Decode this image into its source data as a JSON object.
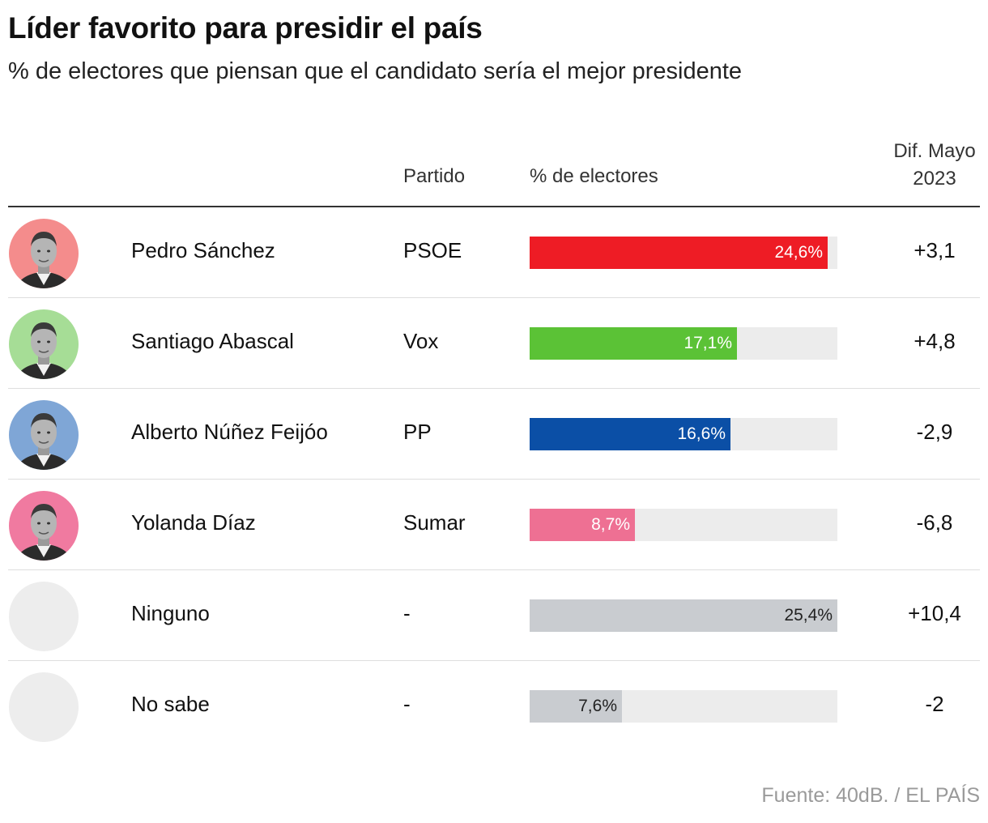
{
  "title": "Líder favorito para presidir el país",
  "subtitle": "% de electores que piensan que el candidato sería el mejor presidente",
  "columns": {
    "party": "Partido",
    "share": "% de electores",
    "diff_line1": "Dif. Mayo",
    "diff_line2": "2023"
  },
  "source": "Fuente: 40dB. / EL PAÍS",
  "chart_data": {
    "type": "bar",
    "orientation": "horizontal",
    "title": "Líder favorito para presidir el país",
    "subtitle": "% de electores que piensan que el candidato sería el mejor presidente",
    "xlim": [
      0,
      25.4
    ],
    "unit": "%",
    "rows": [
      {
        "name": "Pedro Sánchez",
        "party": "PSOE",
        "value": 24.6,
        "label": "24,6%",
        "diff": "+3,1",
        "color": "#ee1c25",
        "text_color": "#ffffff",
        "avatar_bg": "#f48c8c",
        "avatar": "photo"
      },
      {
        "name": "Santiago Abascal",
        "party": "Vox",
        "value": 17.1,
        "label": "17,1%",
        "diff": "+4,8",
        "color": "#5bc236",
        "text_color": "#ffffff",
        "avatar_bg": "#a6dd96",
        "avatar": "photo"
      },
      {
        "name": "Alberto Núñez Feijóo",
        "party": "PP",
        "value": 16.6,
        "label": "16,6%",
        "diff": "-2,9",
        "color": "#0b4fa6",
        "text_color": "#ffffff",
        "avatar_bg": "#7fa6d6",
        "avatar": "photo"
      },
      {
        "name": "Yolanda Díaz",
        "party": "Sumar",
        "value": 8.7,
        "label": "8,7%",
        "diff": "-6,8",
        "color": "#ee7093",
        "text_color": "#ffffff",
        "avatar_bg": "#f07aa0",
        "avatar": "photo"
      },
      {
        "name": "Ninguno",
        "party": "-",
        "value": 25.4,
        "label": "25,4%",
        "diff": "+10,4",
        "color": "#c9ccd0",
        "text_color": "#222222",
        "avatar_bg": "#ededed",
        "avatar": "none"
      },
      {
        "name": "No sabe",
        "party": "-",
        "value": 7.6,
        "label": "7,6%",
        "diff": "-2",
        "color": "#c9ccd0",
        "text_color": "#222222",
        "avatar_bg": "#ededed",
        "avatar": "none"
      }
    ]
  }
}
